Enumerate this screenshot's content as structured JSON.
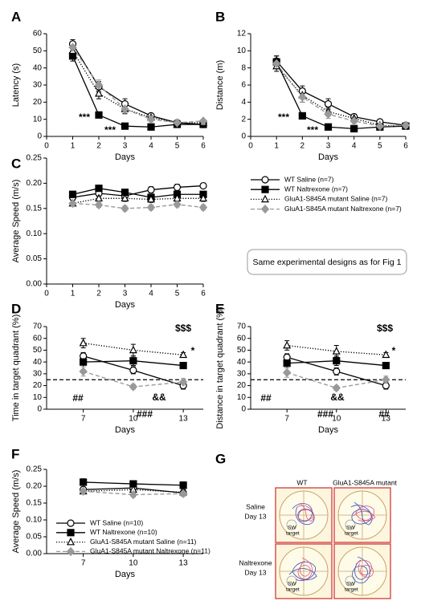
{
  "chart_data": [
    {
      "type": "line",
      "panel_label": "A",
      "x_label": "Days",
      "y_label": "Latency (s)",
      "x": [
        1,
        2,
        3,
        4,
        5,
        6
      ],
      "xlim": [
        0,
        6
      ],
      "xticks": [
        0,
        1,
        2,
        3,
        4,
        5,
        6
      ],
      "ylim": [
        0,
        60
      ],
      "yticks": [
        0,
        10,
        20,
        30,
        40,
        50,
        60
      ],
      "legend": false,
      "annotations": [
        "***",
        "***"
      ],
      "series": [
        {
          "name": "WT Saline (n=7)",
          "color": "#000000",
          "marker": "circle",
          "filled": false,
          "line_style": "solid",
          "values": [
            54,
            29,
            19,
            12,
            8,
            7
          ],
          "errors": [
            2.5,
            3,
            3,
            1.5,
            1,
            1
          ]
        },
        {
          "name": "WT Naltrexone (n=7)",
          "color": "#000000",
          "marker": "square",
          "filled": true,
          "line_style": "solid",
          "values": [
            47,
            12.5,
            6,
            5.5,
            7,
            7
          ],
          "errors": [
            3,
            1.5,
            1,
            1,
            1,
            1
          ]
        },
        {
          "name": "GluA1-S845A mutant Saline (n=7)",
          "color": "#000000",
          "marker": "triangle",
          "filled": false,
          "line_style": "dotted",
          "values": [
            50,
            25,
            16,
            11,
            8,
            8
          ],
          "errors": [
            3,
            3,
            2.5,
            1.5,
            1,
            1
          ]
        },
        {
          "name": "GluA1-S845A mutant Naltrexone (n=7)",
          "color": "#999999",
          "marker": "diamond",
          "filled": true,
          "line_style": "dashed",
          "values": [
            52,
            30,
            16,
            10,
            8,
            9
          ],
          "errors": [
            3,
            3,
            3,
            1.5,
            1,
            1
          ]
        }
      ]
    },
    {
      "type": "line",
      "panel_label": "B",
      "x_label": "Days",
      "y_label": "Distance (m)",
      "x": [
        1,
        2,
        3,
        4,
        5,
        6
      ],
      "xlim": [
        0,
        6
      ],
      "xticks": [
        0,
        1,
        2,
        3,
        4,
        5,
        6
      ],
      "ylim": [
        0,
        12
      ],
      "yticks": [
        0,
        2,
        4,
        6,
        8,
        10,
        12
      ],
      "legend": false,
      "annotations": [
        "***",
        "***"
      ],
      "series": [
        {
          "name": "WT Saline (n=7)",
          "color": "#000000",
          "marker": "circle",
          "filled": false,
          "line_style": "solid",
          "values": [
            8.8,
            5.3,
            3.8,
            2.3,
            1.7,
            1.3
          ],
          "errors": [
            0.6,
            0.6,
            0.6,
            0.3,
            0.2,
            0.2
          ]
        },
        {
          "name": "WT Naltrexone (n=7)",
          "color": "#000000",
          "marker": "square",
          "filled": true,
          "line_style": "solid",
          "values": [
            8.7,
            2.4,
            1.1,
            0.9,
            1.1,
            1.2
          ],
          "errors": [
            0.7,
            0.3,
            0.2,
            0.2,
            0.2,
            0.2
          ]
        },
        {
          "name": "GluA1-S845A mutant Saline (n=7)",
          "color": "#000000",
          "marker": "triangle",
          "filled": false,
          "line_style": "dotted",
          "values": [
            8.2,
            4.8,
            2.9,
            2.1,
            1.3,
            1.2
          ],
          "errors": [
            0.6,
            0.8,
            0.5,
            0.3,
            0.2,
            0.2
          ]
        },
        {
          "name": "GluA1-S845A mutant Naltrexone (n=7)",
          "color": "#999999",
          "marker": "diamond",
          "filled": true,
          "line_style": "dashed",
          "values": [
            8.5,
            4.6,
            2.6,
            1.8,
            1.2,
            1.3
          ],
          "errors": [
            0.6,
            0.6,
            0.5,
            0.3,
            0.2,
            0.2
          ]
        }
      ]
    },
    {
      "type": "line",
      "panel_label": "C",
      "x_label": "Days",
      "y_label": "Average Speed (m/s)",
      "x": [
        1,
        2,
        3,
        4,
        5,
        6
      ],
      "xlim": [
        0,
        6
      ],
      "xticks": [
        0,
        1,
        2,
        3,
        4,
        5,
        6
      ],
      "ylim": [
        0,
        0.25
      ],
      "yticks": [
        {
          "value": 0,
          "label": "0.00"
        },
        0.05,
        {
          "value": 0.1,
          "label": "0.10"
        },
        0.15,
        {
          "value": 0.2,
          "label": "0.20"
        },
        0.25
      ],
      "legend": "right",
      "annotations": [],
      "series": [
        {
          "name": "WT Saline (n=7)",
          "color": "#000000",
          "marker": "circle",
          "filled": false,
          "line_style": "solid",
          "values": [
            0.172,
            0.18,
            0.175,
            0.187,
            0.192,
            0.195
          ],
          "errors": [
            0.006,
            0.006,
            0.006,
            0.006,
            0.006,
            0.005
          ]
        },
        {
          "name": "WT Naltrexone (n=7)",
          "color": "#000000",
          "marker": "square",
          "filled": true,
          "line_style": "solid",
          "values": [
            0.178,
            0.19,
            0.182,
            0.172,
            0.178,
            0.178
          ],
          "errors": [
            0.005,
            0.005,
            0.005,
            0.005,
            0.005,
            0.005
          ]
        },
        {
          "name": "GluA1-S845A mutant Saline (n=7)",
          "color": "#000000",
          "marker": "triangle",
          "filled": false,
          "line_style": "dotted",
          "values": [
            0.16,
            0.17,
            0.17,
            0.168,
            0.17,
            0.17
          ],
          "errors": [
            0.005,
            0.008,
            0.006,
            0.006,
            0.006,
            0.006
          ]
        },
        {
          "name": "GluA1-S845A mutant Naltrexone (n=7)",
          "color": "#999999",
          "marker": "diamond",
          "filled": true,
          "line_style": "dashed",
          "values": [
            0.16,
            0.157,
            0.15,
            0.152,
            0.158,
            0.152
          ],
          "errors": [
            0.005,
            0.005,
            0.005,
            0.005,
            0.005,
            0.005
          ]
        }
      ]
    },
    {
      "type": "line",
      "panel_label": "D",
      "x_label": "Days",
      "y_label": "Time in target quadrant (%)",
      "x": [
        7,
        10,
        13
      ],
      "xlim": [
        4.8,
        14.2
      ],
      "xticks": [
        7,
        10,
        13
      ],
      "ylim": [
        0,
        70
      ],
      "yticks": [
        0,
        10,
        20,
        30,
        40,
        50,
        60,
        70
      ],
      "legend": false,
      "hline": 25,
      "annotations": [
        "##",
        "###",
        "&&",
        "$$$",
        "*"
      ],
      "series": [
        {
          "name": "WT Saline (n=10)",
          "color": "#000000",
          "marker": "circle",
          "filled": false,
          "line_style": "solid",
          "values": [
            45,
            33,
            20
          ],
          "errors": [
            3,
            3,
            3
          ]
        },
        {
          "name": "WT Naltrexone (n=10)",
          "color": "#000000",
          "marker": "square",
          "filled": true,
          "line_style": "solid",
          "values": [
            40,
            41,
            37
          ],
          "errors": [
            4,
            4,
            2
          ]
        },
        {
          "name": "GluA1-S845A mutant Saline (n=11)",
          "color": "#000000",
          "marker": "triangle",
          "filled": false,
          "line_style": "dotted",
          "values": [
            56,
            50,
            46
          ],
          "errors": [
            4,
            5,
            2
          ]
        },
        {
          "name": "GluA1-S845A mutant Naltrexone (n=11)",
          "color": "#999999",
          "marker": "diamond",
          "filled": true,
          "line_style": "dashed",
          "values": [
            32,
            19,
            23
          ],
          "errors": [
            4,
            2,
            3
          ]
        }
      ]
    },
    {
      "type": "line",
      "panel_label": "E",
      "x_label": "Days",
      "y_label": "Distance in target quadrant (%)",
      "x": [
        7,
        10,
        13
      ],
      "xlim": [
        4.8,
        14.2
      ],
      "xticks": [
        7,
        10,
        13
      ],
      "ylim": [
        0,
        70
      ],
      "yticks": [
        0,
        10,
        20,
        30,
        40,
        50,
        60,
        70
      ],
      "legend": false,
      "hline": 25,
      "annotations": [
        "##",
        "###",
        "&&",
        "$$$",
        "*",
        "##"
      ],
      "series": [
        {
          "name": "WT Saline (n=10)",
          "color": "#000000",
          "marker": "circle",
          "filled": false,
          "line_style": "solid",
          "values": [
            44,
            32,
            20
          ],
          "errors": [
            3,
            3,
            3
          ]
        },
        {
          "name": "WT Naltrexone (n=10)",
          "color": "#000000",
          "marker": "square",
          "filled": true,
          "line_style": "solid",
          "values": [
            39,
            41,
            37
          ],
          "errors": [
            4,
            4,
            2
          ]
        },
        {
          "name": "GluA1-S845A mutant Saline (n=11)",
          "color": "#000000",
          "marker": "triangle",
          "filled": false,
          "line_style": "dotted",
          "values": [
            54,
            49,
            46
          ],
          "errors": [
            4,
            5,
            2
          ]
        },
        {
          "name": "GluA1-S845A mutant Naltrexone (n=11)",
          "color": "#999999",
          "marker": "diamond",
          "filled": true,
          "line_style": "dashed",
          "values": [
            31,
            18,
            25
          ],
          "errors": [
            4,
            2,
            3
          ]
        }
      ]
    },
    {
      "type": "line",
      "panel_label": "F",
      "x_label": "Days",
      "y_label": "Average Speed (m/s)",
      "x": [
        7,
        10,
        13
      ],
      "xlim": [
        4.8,
        14.2
      ],
      "xticks": [
        7,
        10,
        13
      ],
      "ylim": [
        0,
        0.25
      ],
      "yticks": [
        {
          "value": 0,
          "label": "0.00"
        },
        0.05,
        {
          "value": 0.1,
          "label": "0.10"
        },
        0.15,
        {
          "value": 0.2,
          "label": "0.20"
        },
        0.25
      ],
      "legend": "lower left",
      "annotations": [],
      "series": [
        {
          "name": "WT Saline (n=10)",
          "color": "#000000",
          "marker": "circle",
          "filled": false,
          "line_style": "solid",
          "values": [
            0.19,
            0.195,
            0.18
          ],
          "errors": [
            0.008,
            0.008,
            0.008
          ]
        },
        {
          "name": "WT Naltrexone (n=10)",
          "color": "#000000",
          "marker": "square",
          "filled": true,
          "line_style": "solid",
          "values": [
            0.212,
            0.207,
            0.203
          ],
          "errors": [
            0.01,
            0.009,
            0.01
          ]
        },
        {
          "name": "GluA1-S845A mutant Saline (n=11)",
          "color": "#000000",
          "marker": "triangle",
          "filled": false,
          "line_style": "dotted",
          "values": [
            0.185,
            0.19,
            0.182
          ],
          "errors": [
            0.008,
            0.008,
            0.008
          ]
        },
        {
          "name": "GluA1-S845A mutant Naltrexone (n=11)",
          "color": "#999999",
          "marker": "diamond",
          "filled": true,
          "line_style": "dashed",
          "values": [
            0.185,
            0.175,
            0.178
          ],
          "errors": [
            0.007,
            0.007,
            0.008
          ]
        }
      ]
    }
  ],
  "note_box": "Same experimental designs as for Fig 1",
  "panel_g": {
    "panel_label": "G",
    "column_titles": [
      "WT",
      "GluA1-S845A mutant"
    ],
    "row_labels": [
      [
        "Saline",
        "Day 13"
      ],
      [
        "Naltrexone",
        "Day 13"
      ]
    ],
    "target_label": [
      "SW",
      "target"
    ]
  }
}
